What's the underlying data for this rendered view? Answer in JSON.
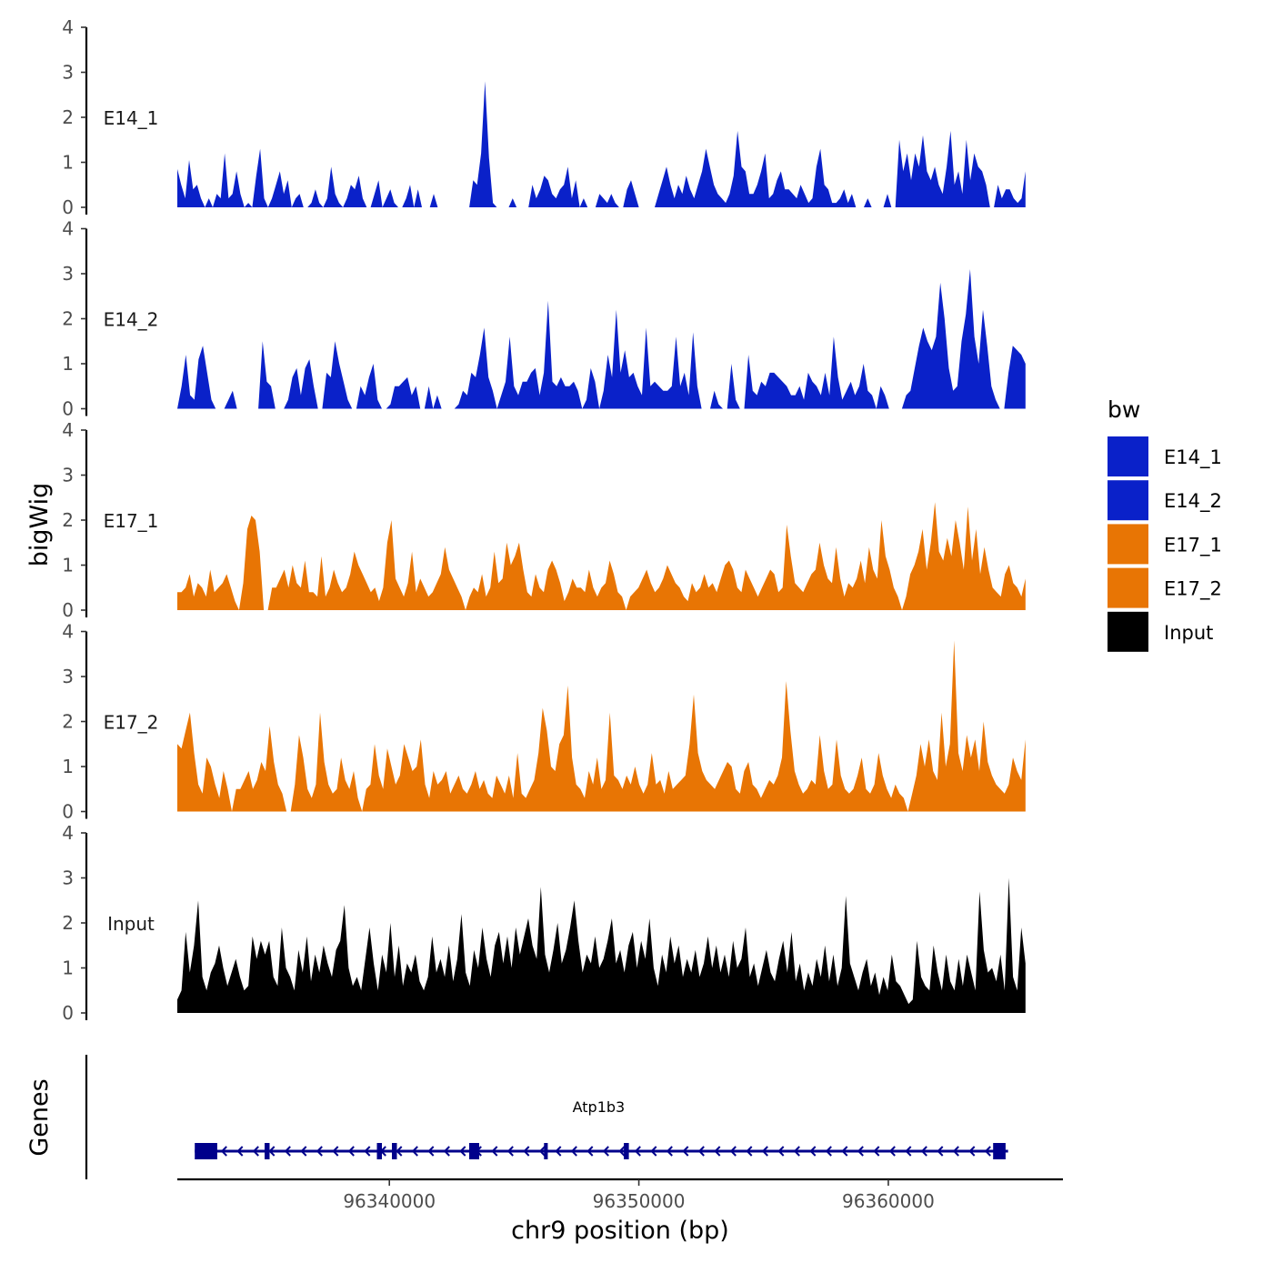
{
  "chart_data": {
    "type": "area",
    "title": "",
    "chromosome": "chr9",
    "xlabel": "chr9 position (bp)",
    "ylabel": "bigWig",
    "genes_label": "Genes",
    "xlim": [
      96331500,
      96367000
    ],
    "x_ticks": [
      96340000,
      96350000,
      96360000
    ],
    "x_tick_labels": [
      "96340000",
      "96350000",
      "96360000"
    ],
    "ylim": [
      0,
      4
    ],
    "y_ticks": [
      0,
      1,
      2,
      3,
      4
    ],
    "y_tick_labels": [
      "0",
      "1",
      "2",
      "3",
      "4"
    ],
    "track_range": [
      96331500,
      96365500
    ],
    "legend": {
      "title": "bw",
      "position": "right",
      "entries": [
        {
          "label": "E14_1",
          "color": "#0a21c9"
        },
        {
          "label": "E14_2",
          "color": "#0a21c9"
        },
        {
          "label": "E17_1",
          "color": "#e87504"
        },
        {
          "label": "E17_2",
          "color": "#e87504"
        },
        {
          "label": "Input",
          "color": "#000000"
        }
      ]
    },
    "series": [
      {
        "name": "E14_1",
        "color": "#0a21c9",
        "values": [
          0.85,
          0.5,
          0.2,
          1.05,
          0.4,
          0.5,
          0.2,
          0,
          0.2,
          0,
          0.3,
          0.2,
          1.2,
          0.2,
          0.3,
          0.8,
          0.3,
          0,
          0.1,
          0,
          0.7,
          1.3,
          0.2,
          0,
          0.2,
          0.5,
          0.8,
          0.3,
          0.6,
          0,
          0.2,
          0.3,
          0,
          0,
          0.1,
          0.4,
          0.1,
          0,
          0.2,
          0.9,
          0.3,
          0.1,
          0,
          0.2,
          0.5,
          0.4,
          0.7,
          0.2,
          0,
          0,
          0.3,
          0.6,
          0,
          0.2,
          0.4,
          0.1,
          0,
          0,
          0.2,
          0.5,
          0,
          0.4,
          0,
          0,
          0,
          0.3,
          0,
          0,
          0,
          0,
          0,
          0,
          0,
          0,
          0,
          0.6,
          0.5,
          1.2,
          2.8,
          1.1,
          0.1,
          0,
          0,
          0,
          0,
          0.2,
          0,
          0,
          0,
          0,
          0.5,
          0.2,
          0.4,
          0.7,
          0.6,
          0.3,
          0.2,
          0.4,
          0.5,
          0.9,
          0.2,
          0.6,
          0,
          0.2,
          0,
          0,
          0,
          0.3,
          0.2,
          0.1,
          0.3,
          0.1,
          0,
          0,
          0.4,
          0.6,
          0.3,
          0,
          0,
          0,
          0,
          0,
          0.3,
          0.6,
          0.9,
          0.5,
          0.2,
          0.5,
          0.3,
          0.7,
          0.4,
          0.2,
          0.5,
          0.8,
          1.3,
          0.9,
          0.5,
          0.3,
          0.2,
          0.1,
          0.3,
          0.7,
          1.7,
          0.9,
          0.8,
          0.3,
          0.3,
          0.5,
          0.8,
          1.2,
          0.2,
          0.3,
          0.6,
          0.8,
          0.4,
          0.4,
          0.3,
          0.2,
          0.5,
          0.3,
          0.1,
          0.2,
          0.9,
          1.3,
          0.5,
          0.4,
          0.1,
          0.1,
          0.2,
          0.4,
          0.1,
          0.3,
          0,
          0,
          0,
          0.2,
          0,
          0,
          0,
          0,
          0.3,
          0,
          0,
          1.5,
          0.8,
          1.2,
          0.6,
          1.2,
          0.9,
          1.6,
          0.8,
          0.6,
          0.9,
          0.5,
          0.3,
          0.9,
          1.7,
          0.5,
          0.8,
          0.3,
          1.5,
          0.6,
          1.2,
          0.9,
          0.8,
          0.5,
          0,
          0,
          0.5,
          0.2,
          0.4,
          0.4,
          0.2,
          0.1,
          0.2,
          0.8
        ]
      },
      {
        "name": "E14_2",
        "color": "#0a21c9",
        "values": [
          0,
          0.5,
          1.2,
          0.3,
          0.2,
          1.1,
          1.4,
          0.8,
          0.2,
          0,
          0,
          0,
          0.2,
          0.4,
          0,
          0,
          0,
          0,
          0,
          0,
          1.5,
          0.6,
          0.5,
          0,
          0,
          0,
          0.2,
          0.7,
          0.9,
          0.3,
          0.9,
          1.1,
          0.5,
          0,
          0,
          0.8,
          0.7,
          1.5,
          1.0,
          0.6,
          0.2,
          0,
          0,
          0.5,
          0.3,
          0.7,
          1.0,
          0.2,
          0,
          0,
          0.1,
          0.5,
          0.5,
          0.6,
          0.7,
          0.3,
          0.5,
          0,
          0,
          0.5,
          0,
          0.3,
          0,
          0,
          0,
          0,
          0.1,
          0.4,
          0.3,
          0.8,
          0.7,
          1.2,
          1.8,
          0.7,
          0.4,
          0,
          0.3,
          0.6,
          1.6,
          0.5,
          0.3,
          0.6,
          0.6,
          0.8,
          0.9,
          0.3,
          0.8,
          2.4,
          0.6,
          0.5,
          0.7,
          0.5,
          0.5,
          0.6,
          0.4,
          0,
          0.2,
          0.9,
          0.6,
          0,
          0.4,
          1.2,
          0.7,
          2.2,
          0.8,
          1.3,
          0.7,
          0.8,
          0.5,
          0.3,
          1.8,
          0.5,
          0.6,
          0.5,
          0.4,
          0.4,
          0.5,
          1.6,
          0.5,
          0.8,
          0.3,
          1.7,
          0.5,
          0,
          0,
          0,
          0.4,
          0.1,
          0,
          0,
          1.0,
          0.2,
          0,
          0,
          1.2,
          0.4,
          0.3,
          0.6,
          0.5,
          0.8,
          0.8,
          0.7,
          0.6,
          0.5,
          0.3,
          0.3,
          0.5,
          0.2,
          0.8,
          0.6,
          0.5,
          0.3,
          0.8,
          0.3,
          1.6,
          0.7,
          0.2,
          0.4,
          0.6,
          0.3,
          0.5,
          1.0,
          0.4,
          0.3,
          0,
          0.5,
          0.3,
          0,
          0,
          0,
          0,
          0.3,
          0.4,
          0.9,
          1.4,
          1.8,
          1.5,
          1.3,
          1.6,
          2.8,
          2.0,
          0.9,
          0.4,
          0.5,
          1.5,
          2.1,
          3.1,
          1.6,
          1.0,
          2.2,
          1.4,
          0.5,
          0.2,
          0,
          0,
          0.8,
          1.4,
          1.3,
          1.2,
          1.0
        ]
      },
      {
        "name": "E17_1",
        "color": "#e87504",
        "values": [
          0.4,
          0.4,
          0.5,
          0.8,
          0.3,
          0.6,
          0.5,
          0.3,
          0.9,
          0.4,
          0.5,
          0.6,
          0.8,
          0.5,
          0.2,
          0,
          0.6,
          1.8,
          2.1,
          2.0,
          1.3,
          0,
          0,
          0.5,
          0.5,
          0.7,
          0.9,
          0.5,
          1.0,
          0.6,
          0.5,
          1.1,
          0.4,
          0.4,
          0.3,
          1.2,
          0.3,
          0.5,
          0.9,
          0.6,
          0.4,
          0.5,
          0.8,
          1.3,
          1.0,
          0.8,
          0.6,
          0.4,
          0.5,
          0.2,
          0.5,
          1.5,
          2.0,
          0.7,
          0.5,
          0.3,
          0.6,
          1.3,
          0.4,
          0.7,
          0.5,
          0.3,
          0.4,
          0.6,
          0.8,
          1.4,
          0.9,
          0.7,
          0.5,
          0.3,
          0,
          0.3,
          0.5,
          0.4,
          0.8,
          0.3,
          0.5,
          1.3,
          0.6,
          0.7,
          1.5,
          1.0,
          1.2,
          1.5,
          0.9,
          0.4,
          0.3,
          0.8,
          0.5,
          0.4,
          0.9,
          1.1,
          0.9,
          0.6,
          0.2,
          0.4,
          0.7,
          0.5,
          0.5,
          0.4,
          0.9,
          0.5,
          0.3,
          0.5,
          0.6,
          1.1,
          0.8,
          0.4,
          0.3,
          0,
          0.3,
          0.4,
          0.5,
          0.7,
          0.9,
          0.6,
          0.4,
          0.5,
          0.7,
          1.0,
          0.8,
          0.6,
          0.5,
          0.3,
          0.2,
          0.6,
          0.4,
          0.5,
          0.8,
          0.5,
          0.6,
          0.4,
          0.7,
          1.0,
          1.1,
          0.9,
          0.5,
          0.4,
          0.9,
          0.7,
          0.5,
          0.3,
          0.5,
          0.7,
          0.9,
          0.8,
          0.4,
          0.5,
          1.9,
          1.2,
          0.6,
          0.5,
          0.4,
          0.6,
          0.8,
          0.9,
          1.5,
          1.0,
          0.7,
          0.6,
          1.4,
          0.7,
          0.3,
          0.6,
          0.5,
          0.7,
          1.1,
          0.6,
          1.4,
          0.9,
          0.7,
          2.0,
          1.2,
          0.9,
          0.5,
          0.3,
          0,
          0.3,
          0.8,
          1.0,
          1.3,
          1.8,
          0.9,
          1.5,
          2.4,
          1.3,
          1.1,
          1.6,
          1.2,
          2.0,
          1.5,
          0.9,
          2.3,
          1.1,
          1.8,
          0.8,
          1.4,
          0.9,
          0.5,
          0.4,
          0.3,
          0.8,
          1.0,
          0.6,
          0.5,
          0.3,
          0.7
        ]
      },
      {
        "name": "E17_2",
        "color": "#e87504",
        "values": [
          1.5,
          1.4,
          1.8,
          2.2,
          1.3,
          0.6,
          0.4,
          1.2,
          1.0,
          0.6,
          0.3,
          0.9,
          0.5,
          0,
          0.5,
          0.5,
          0.7,
          0.9,
          0.5,
          0.7,
          1.1,
          0.9,
          1.9,
          1.1,
          0.6,
          0.4,
          0,
          0,
          0.6,
          1.7,
          1.2,
          0.5,
          0.3,
          0.6,
          2.2,
          1.1,
          0.6,
          0.4,
          0.5,
          1.2,
          0.7,
          0.5,
          0.9,
          0.3,
          0,
          0.5,
          0.6,
          1.5,
          0.8,
          0.5,
          1.4,
          1.0,
          0.6,
          0.8,
          1.5,
          1.2,
          0.9,
          1.0,
          1.6,
          0.6,
          0.3,
          0.9,
          0.6,
          0.7,
          0.9,
          0.4,
          0.6,
          0.8,
          0.5,
          0.4,
          0.6,
          0.9,
          0.5,
          0.7,
          0.4,
          0.3,
          0.8,
          0.6,
          0.4,
          0.8,
          0.3,
          1.3,
          0.4,
          0.3,
          0.5,
          0.7,
          1.3,
          2.3,
          1.8,
          1.0,
          0.9,
          1.5,
          1.7,
          2.8,
          1.2,
          0.6,
          0.5,
          0.3,
          0.9,
          0.6,
          1.2,
          0.5,
          0.7,
          2.2,
          0.8,
          0.7,
          0.5,
          0.8,
          0.6,
          1.0,
          0.6,
          0.4,
          0.6,
          1.3,
          0.6,
          0.7,
          0.4,
          0.9,
          0.5,
          0.6,
          0.7,
          0.8,
          1.5,
          2.6,
          1.3,
          0.9,
          0.7,
          0.6,
          0.5,
          0.7,
          0.9,
          1.1,
          1.0,
          0.5,
          0.4,
          0.9,
          1.1,
          0.6,
          0.5,
          0.3,
          0.5,
          0.7,
          0.6,
          0.8,
          1.2,
          2.9,
          1.8,
          0.9,
          0.6,
          0.4,
          0.5,
          0.7,
          0.6,
          1.7,
          0.9,
          0.5,
          0.6,
          1.6,
          0.8,
          0.5,
          0.4,
          0.5,
          0.8,
          1.2,
          0.5,
          0.4,
          0.6,
          1.3,
          0.8,
          0.5,
          0.3,
          0.6,
          0.4,
          0.3,
          0,
          0.4,
          0.8,
          1.5,
          1.0,
          1.6,
          0.9,
          0.7,
          2.2,
          1.0,
          1.5,
          3.8,
          1.3,
          0.9,
          1.7,
          1.2,
          1.6,
          0.9,
          2.0,
          1.1,
          0.8,
          0.6,
          0.5,
          0.4,
          0.6,
          1.2,
          0.9,
          0.7,
          1.6
        ]
      },
      {
        "name": "Input",
        "color": "#000000",
        "values": [
          0.3,
          0.5,
          1.8,
          0.9,
          1.5,
          2.5,
          0.8,
          0.5,
          0.9,
          1.1,
          1.5,
          1.0,
          0.6,
          0.9,
          1.2,
          0.8,
          0.5,
          0.6,
          1.7,
          1.2,
          1.6,
          1.3,
          1.6,
          0.8,
          0.6,
          1.9,
          1.0,
          0.8,
          0.5,
          1.4,
          0.9,
          1.7,
          0.7,
          1.3,
          0.9,
          1.5,
          1.1,
          0.8,
          1.4,
          1.6,
          2.4,
          1.0,
          0.6,
          0.8,
          0.5,
          1.2,
          1.9,
          1.1,
          0.5,
          1.3,
          0.9,
          2.0,
          0.8,
          1.5,
          0.6,
          1.1,
          0.9,
          1.3,
          0.7,
          0.5,
          0.8,
          1.7,
          0.9,
          1.2,
          0.8,
          1.5,
          0.7,
          1.2,
          2.2,
          0.9,
          0.6,
          1.4,
          1.0,
          1.9,
          1.2,
          0.8,
          1.5,
          1.8,
          1.1,
          1.7,
          1.0,
          1.9,
          1.3,
          1.7,
          2.1,
          1.5,
          1.2,
          2.8,
          1.3,
          0.9,
          1.4,
          2.0,
          1.1,
          1.4,
          1.9,
          2.5,
          1.6,
          0.9,
          1.3,
          1.1,
          1.7,
          1.0,
          1.2,
          1.6,
          2.1,
          1.1,
          1.4,
          0.9,
          1.5,
          1.8,
          1.0,
          1.6,
          1.2,
          2.1,
          1.0,
          0.6,
          1.3,
          0.9,
          1.7,
          1.1,
          1.5,
          0.8,
          1.2,
          0.9,
          1.4,
          0.8,
          1.1,
          1.7,
          1.0,
          1.5,
          0.9,
          1.3,
          0.8,
          1.6,
          1.0,
          1.2,
          1.9,
          0.8,
          1.1,
          0.6,
          1.0,
          1.4,
          0.9,
          0.7,
          1.2,
          1.6,
          0.9,
          1.8,
          0.7,
          1.1,
          0.5,
          0.9,
          0.6,
          1.2,
          0.8,
          1.5,
          0.7,
          1.3,
          0.6,
          1.0,
          2.6,
          1.1,
          0.8,
          0.5,
          0.9,
          1.2,
          0.6,
          0.9,
          0.4,
          0.8,
          0.5,
          1.3,
          0.7,
          0.6,
          0.4,
          0.2,
          0.3,
          1.6,
          0.8,
          0.6,
          0.5,
          1.5,
          0.9,
          0.5,
          1.3,
          0.7,
          0.5,
          1.2,
          0.6,
          1.3,
          0.9,
          0.5,
          2.7,
          1.4,
          0.9,
          1.0,
          0.7,
          1.3,
          0.5,
          3.0,
          0.8,
          0.5,
          1.9,
          1.1
        ]
      }
    ],
    "gene": {
      "name": "Atp1b3",
      "strand": "-",
      "start": 96332200,
      "end": 96364800,
      "exons": [
        [
          96332200,
          96333100
        ],
        [
          96335000,
          96335200
        ],
        [
          96339500,
          96339700
        ],
        [
          96340100,
          96340300
        ],
        [
          96343200,
          96343600
        ],
        [
          96346200,
          96346350
        ],
        [
          96349400,
          96349600
        ],
        [
          96364200,
          96364700
        ]
      ]
    }
  }
}
